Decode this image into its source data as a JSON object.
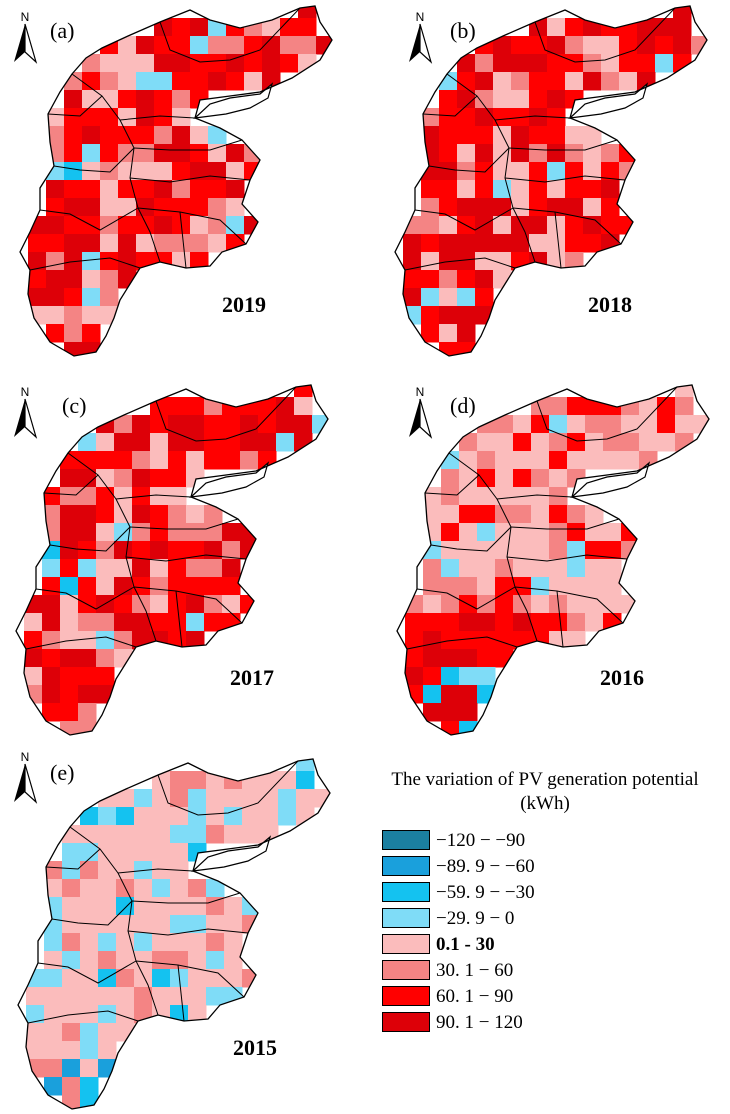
{
  "panels": [
    {
      "label": "(a)",
      "year": "2019",
      "scheme": "high"
    },
    {
      "label": "(b)",
      "year": "2018",
      "scheme": "veryhigh"
    },
    {
      "label": "(c)",
      "year": "2017",
      "scheme": "high"
    },
    {
      "label": "(d)",
      "year": "2016",
      "scheme": "medium"
    },
    {
      "label": "(e)",
      "year": "2015",
      "scheme": "low"
    }
  ],
  "north_arrow_label": "N",
  "legend": {
    "title_line1": "The variation of  PV generation potential",
    "title_line2": "(kWh)",
    "items": [
      {
        "label": "−120  −  −90",
        "color": "#1b7fa0"
      },
      {
        "label": "−89. 9  −  −60",
        "color": "#1aa0dc"
      },
      {
        "label": "−59. 9  −  −30",
        "color": "#14c2f0"
      },
      {
        "label": "−29. 9  −  0",
        "color": "#7fdcf7"
      },
      {
        "label": "0.1 - 30",
        "color": "#fbbcbc"
      },
      {
        "label": "30. 1  −  60",
        "color": "#f48484"
      },
      {
        "label": "60. 1  −  90",
        "color": "#ff0000"
      },
      {
        "label": "90. 1  −  120",
        "color": "#dd0008"
      }
    ]
  },
  "colors": {
    "light_pink": "#fbbcbc",
    "salmon": "#f48484",
    "red": "#ff0000",
    "dark_red": "#dd0008",
    "light_cyan": "#7fdcf7",
    "cyan": "#14c2f0",
    "blue": "#1aa0dc",
    "dark_teal": "#1b7fa0",
    "boundary": "#000000"
  }
}
